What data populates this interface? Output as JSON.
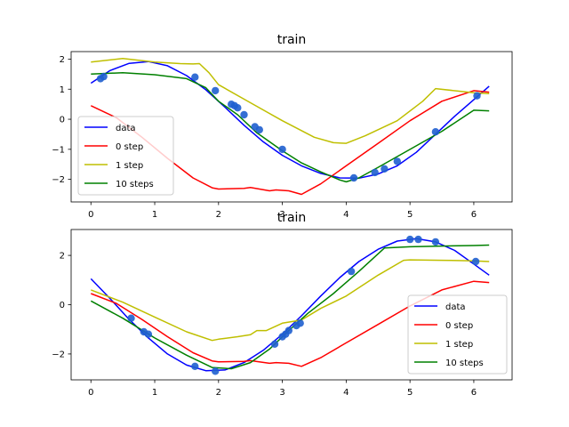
{
  "chart_data": [
    {
      "type": "line",
      "title": "train",
      "xlim": [
        -0.31,
        6.6
      ],
      "ylim": [
        -2.75,
        2.25
      ],
      "x_ticks": [
        0,
        1,
        2,
        3,
        4,
        5,
        6
      ],
      "y_ticks": [
        -2,
        -1,
        0,
        1,
        2
      ],
      "legend_position": "center-left",
      "series": [
        {
          "name": "data",
          "color": "#0000ff",
          "style": "line",
          "x": [
            0.0,
            0.3,
            0.6,
            0.9,
            1.2,
            1.5,
            1.8,
            2.1,
            2.4,
            2.7,
            3.0,
            3.3,
            3.6,
            3.9,
            4.2,
            4.5,
            4.8,
            5.1,
            5.4,
            5.7,
            6.0,
            6.24
          ],
          "y": [
            1.2,
            1.62,
            1.86,
            1.92,
            1.78,
            1.45,
            0.98,
            0.4,
            -0.2,
            -0.75,
            -1.2,
            -1.55,
            -1.8,
            -1.95,
            -1.96,
            -1.82,
            -1.55,
            -1.1,
            -0.5,
            0.1,
            0.65,
            1.1
          ]
        },
        {
          "name": "0 step",
          "color": "#ff0000",
          "style": "line",
          "x": [
            0.0,
            0.4,
            0.8,
            1.2,
            1.6,
            1.9,
            2.0,
            2.4,
            2.5,
            2.8,
            2.9,
            3.1,
            3.3,
            3.6,
            4.0,
            4.5,
            5.0,
            5.5,
            6.0,
            6.24
          ],
          "y": [
            0.45,
            0.05,
            -0.6,
            -1.3,
            -1.95,
            -2.28,
            -2.32,
            -2.3,
            -2.27,
            -2.38,
            -2.35,
            -2.38,
            -2.5,
            -2.15,
            -1.55,
            -0.8,
            -0.05,
            0.6,
            0.95,
            0.9
          ]
        },
        {
          "name": "1 step",
          "color": "#bfbf00",
          "style": "line",
          "x": [
            0.0,
            0.5,
            1.0,
            1.4,
            1.6,
            1.7,
            1.85,
            2.0,
            2.5,
            3.0,
            3.5,
            3.8,
            4.0,
            4.3,
            4.8,
            5.2,
            5.4,
            6.0,
            6.24
          ],
          "y": [
            1.9,
            2.02,
            1.9,
            1.85,
            1.84,
            1.85,
            1.55,
            1.15,
            0.55,
            -0.05,
            -0.6,
            -0.78,
            -0.8,
            -0.55,
            -0.05,
            0.6,
            1.02,
            0.88,
            0.85
          ]
        },
        {
          "name": "10 steps",
          "color": "#008000",
          "style": "line",
          "x": [
            0.0,
            0.5,
            1.0,
            1.5,
            1.8,
            2.0,
            2.3,
            2.6,
            3.0,
            3.3,
            3.6,
            3.9,
            4.0,
            4.2,
            4.5,
            5.0,
            5.5,
            6.0,
            6.24
          ],
          "y": [
            1.5,
            1.55,
            1.48,
            1.35,
            1.05,
            0.6,
            0.15,
            -0.45,
            -1.05,
            -1.45,
            -1.75,
            -2.02,
            -2.08,
            -1.95,
            -1.6,
            -1.0,
            -0.4,
            0.3,
            0.28
          ]
        },
        {
          "name": "",
          "color": "#1f5fcf",
          "style": "points",
          "x": [
            0.15,
            0.2,
            1.63,
            1.95,
            2.2,
            2.25,
            2.3,
            2.4,
            2.57,
            2.64,
            3.0,
            4.12,
            4.45,
            4.6,
            4.8,
            5.4,
            6.05
          ],
          "y": [
            1.35,
            1.42,
            1.4,
            0.95,
            0.5,
            0.45,
            0.38,
            0.15,
            -0.25,
            -0.35,
            -1.0,
            -1.95,
            -1.77,
            -1.65,
            -1.4,
            -0.42,
            0.78
          ]
        }
      ]
    },
    {
      "type": "line",
      "title": "train",
      "xlim": [
        -0.31,
        6.6
      ],
      "ylim": [
        -3.05,
        3.05
      ],
      "x_ticks": [
        0,
        1,
        2,
        3,
        4,
        5,
        6
      ],
      "y_ticks": [
        -2,
        0,
        2
      ],
      "legend_position": "lower-right",
      "series": [
        {
          "name": "data",
          "color": "#0000ff",
          "style": "line",
          "x": [
            0.0,
            0.3,
            0.6,
            0.9,
            1.2,
            1.5,
            1.8,
            2.1,
            2.4,
            2.7,
            3.0,
            3.3,
            3.6,
            3.9,
            4.2,
            4.5,
            4.8,
            5.1,
            5.4,
            5.7,
            6.0,
            6.24
          ],
          "y": [
            1.05,
            0.25,
            -0.6,
            -1.35,
            -2.0,
            -2.45,
            -2.68,
            -2.65,
            -2.35,
            -1.85,
            -1.2,
            -0.45,
            0.35,
            1.1,
            1.75,
            2.25,
            2.58,
            2.68,
            2.55,
            2.2,
            1.65,
            1.2
          ]
        },
        {
          "name": "0 step",
          "color": "#ff0000",
          "style": "line",
          "x": [
            0.0,
            0.4,
            0.8,
            1.2,
            1.6,
            1.9,
            2.0,
            2.4,
            2.5,
            2.8,
            2.9,
            3.1,
            3.3,
            3.6,
            4.0,
            4.5,
            5.0,
            5.5,
            6.0,
            6.24
          ],
          "y": [
            0.45,
            0.05,
            -0.6,
            -1.3,
            -1.95,
            -2.28,
            -2.32,
            -2.3,
            -2.27,
            -2.38,
            -2.35,
            -2.38,
            -2.5,
            -2.15,
            -1.55,
            -0.8,
            -0.05,
            0.6,
            0.95,
            0.9
          ]
        },
        {
          "name": "1 step",
          "color": "#bfbf00",
          "style": "line",
          "x": [
            0.0,
            0.5,
            1.0,
            1.5,
            1.9,
            2.0,
            2.3,
            2.5,
            2.6,
            2.75,
            3.0,
            3.3,
            3.6,
            4.0,
            4.5,
            4.9,
            5.0,
            5.5,
            6.0,
            6.24
          ],
          "y": [
            0.6,
            0.1,
            -0.5,
            -1.1,
            -1.45,
            -1.4,
            -1.3,
            -1.22,
            -1.05,
            -1.05,
            -0.75,
            -0.62,
            -0.15,
            0.35,
            1.2,
            1.8,
            1.82,
            1.8,
            1.78,
            1.75
          ]
        },
        {
          "name": "10 steps",
          "color": "#008000",
          "style": "line",
          "x": [
            0.0,
            0.5,
            1.0,
            1.5,
            1.9,
            2.2,
            2.5,
            2.8,
            3.1,
            3.4,
            3.8,
            4.2,
            4.6,
            5.0,
            5.5,
            6.0,
            6.24
          ],
          "y": [
            0.15,
            -0.55,
            -1.35,
            -2.05,
            -2.55,
            -2.6,
            -2.35,
            -1.8,
            -1.05,
            -0.35,
            0.45,
            1.35,
            2.3,
            2.35,
            2.38,
            2.4,
            2.42
          ]
        },
        {
          "name": "",
          "color": "#1f5fcf",
          "style": "points",
          "x": [
            0.63,
            0.83,
            0.9,
            1.63,
            1.95,
            2.88,
            3.0,
            3.05,
            3.1,
            3.22,
            3.28,
            4.08,
            5.0,
            5.13,
            5.4,
            6.03
          ],
          "y": [
            -0.55,
            -1.1,
            -1.2,
            -2.5,
            -2.7,
            -1.6,
            -1.3,
            -1.2,
            -1.05,
            -0.85,
            -0.75,
            1.35,
            2.65,
            2.65,
            2.55,
            1.75
          ]
        }
      ]
    }
  ]
}
